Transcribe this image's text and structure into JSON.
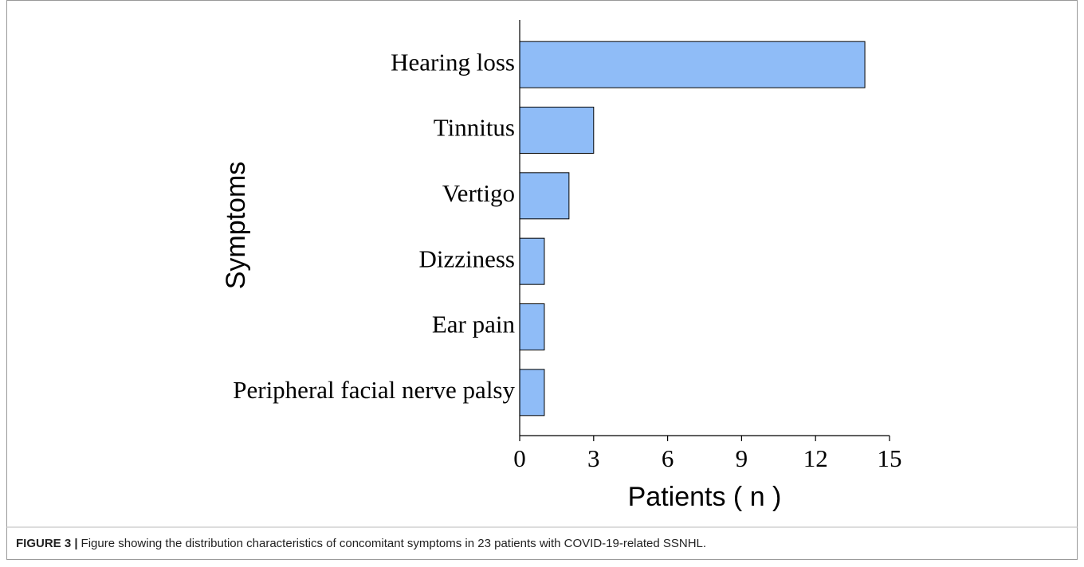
{
  "chart_data": {
    "type": "hbar",
    "categories": [
      "Hearing loss",
      "Tinnitus",
      "Vertigo",
      "Dizziness",
      "Ear pain",
      "Peripheral facial nerve palsy"
    ],
    "values": [
      14,
      3,
      2,
      1,
      1,
      1
    ],
    "color": "#8fbcf7",
    "xlabel": "Patients ( n )",
    "ylabel": "Symptoms",
    "xlim": [
      0,
      15
    ],
    "xticks": [
      0,
      3,
      6,
      9,
      12,
      15
    ]
  },
  "caption": {
    "label": "FIGURE 3 |",
    "text": "Figure showing the distribution characteristics of concomitant symptoms in 23 patients with COVID-19-related SSNHL."
  }
}
